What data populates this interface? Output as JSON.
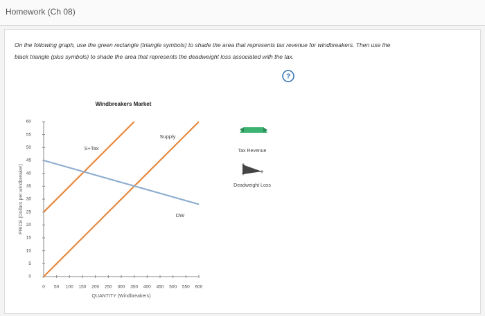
{
  "header": {
    "title": "Homework (Ch 08)"
  },
  "instructions": [
    "On the following graph, use the green rectangle (triangle symbols) to shade the area that represents tax revenue for windbreakers. Then use the",
    "black triangle (plus symbols) to shade the area that represents the deadweight loss associated with the tax."
  ],
  "help": "?",
  "palette": {
    "tax_revenue": "Tax Revenue",
    "deadweight_loss": "Deadweight Loss"
  },
  "chart_data": {
    "type": "line",
    "title": "Windbreakers Market",
    "x_label": "QUANTITY (Windbreakers)",
    "y_label": "PRICE (Dollars per windbreaker)",
    "xlim": [
      0,
      600
    ],
    "ylim": [
      0,
      60
    ],
    "xticks": [
      0,
      50,
      100,
      150,
      200,
      250,
      300,
      350,
      400,
      450,
      500,
      550,
      600
    ],
    "yticks": [
      0,
      5,
      10,
      15,
      20,
      25,
      30,
      35,
      40,
      45,
      50,
      55,
      60
    ],
    "series": [
      {
        "name": "Supply",
        "color": "#e8873a",
        "x": [
          0,
          600
        ],
        "values": [
          0,
          60
        ]
      },
      {
        "name": "S+Tax",
        "color": "#e8873a",
        "x": [
          0,
          350
        ],
        "values": [
          25,
          60
        ]
      },
      {
        "name": "DW",
        "color": "#8eaed0",
        "x": [
          0,
          600
        ],
        "values": [
          45,
          28
        ]
      }
    ]
  }
}
